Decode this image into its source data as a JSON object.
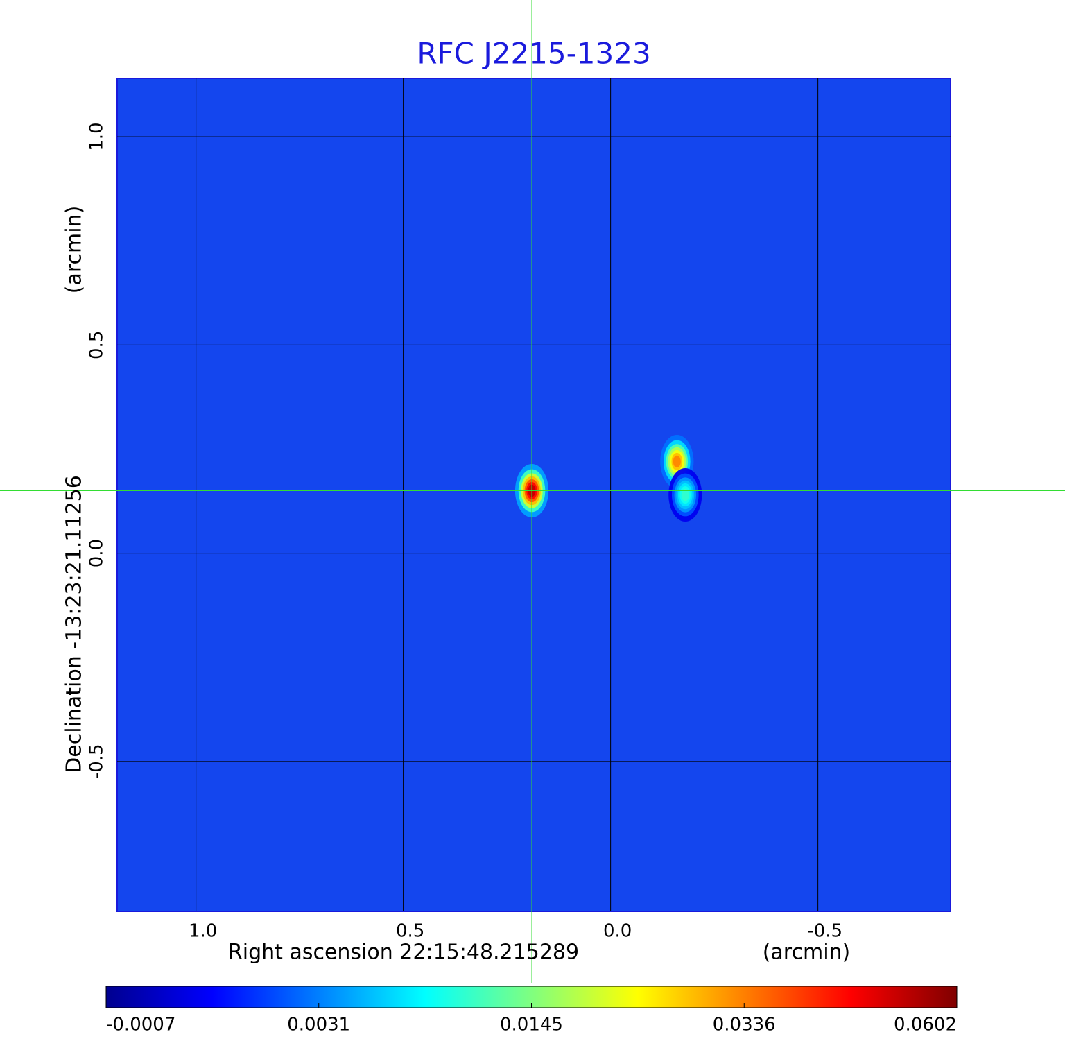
{
  "chart_data": {
    "type": "image",
    "title": "RFC J2215-1323",
    "x_label": "Right ascension  22:15:48.215289",
    "x_unit": "(arcmin)",
    "y_label": "Declination  -13:23:21.11256",
    "y_unit": "(arcmin)",
    "xlim": [
      1.19,
      -0.82
    ],
    "ylim": [
      -0.86,
      1.14
    ],
    "xticks": [
      {
        "value": 1,
        "label": "1.0"
      },
      0.5,
      {
        "value": 0,
        "label": "0.0"
      },
      -0.5
    ],
    "yticks": [
      -0.5,
      {
        "value": 0,
        "label": "0.0"
      },
      0.5,
      {
        "value": 1,
        "label": "1.0"
      }
    ],
    "grid": true,
    "colormap": "jet",
    "colorbar_ticks": [
      -0.0007,
      0.0031,
      0.0145,
      0.0336,
      0.0602
    ],
    "crosshair": {
      "x": 0.19,
      "y": 0.15,
      "color": "#33dd33"
    },
    "sources": {
      "x": [
        0.19,
        -0.16,
        -0.18
      ],
      "y": [
        0.15,
        0.22,
        0.14
      ],
      "values": [
        0.058,
        0.036,
        0.012
      ]
    }
  }
}
